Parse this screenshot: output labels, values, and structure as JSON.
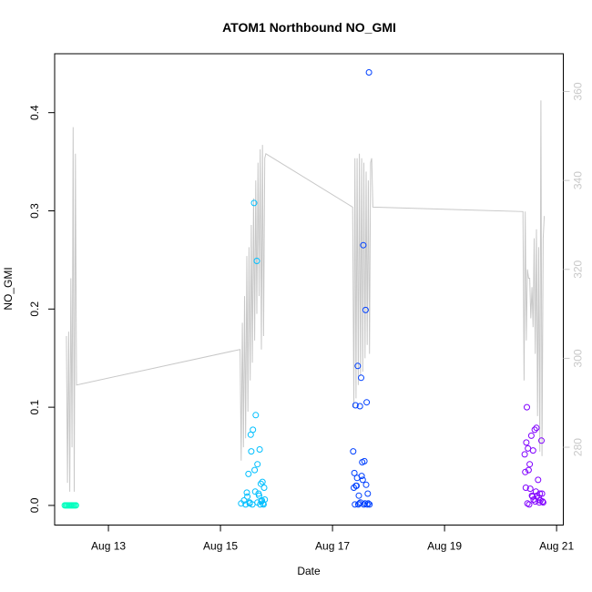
{
  "chart_data": {
    "type": "scatter",
    "title": "ATOM1 Northbound NO_GMI",
    "xlabel": "Date",
    "ylabel": "NO_GMI",
    "x_ticks": [
      "Aug 13",
      "Aug 15",
      "Aug 17",
      "Aug 19",
      "Aug 21"
    ],
    "y_ticks": [
      "0.0",
      "0.1",
      "0.2",
      "0.3",
      "0.4"
    ],
    "y2_ticks": [
      "280",
      "300",
      "320",
      "340",
      "360"
    ],
    "xlim_days": [
      12.04,
      21.12
    ],
    "ylim": [
      -0.02,
      0.46
    ],
    "y2lim": [
      262.5,
      368.5
    ],
    "grid": false,
    "legend": "none",
    "colors": {
      "flight_aug12": "#00ffbf",
      "flight_aug15": "#00bfff",
      "flight_aug17": "#0040ff",
      "flight_aug20": "#8000ff",
      "right_axis_line": "#c8c8c8"
    },
    "series": [
      {
        "color_key": "flight_aug12",
        "x": [
          12.22,
          12.24,
          12.26,
          12.28,
          12.3,
          12.32,
          12.34,
          12.36,
          12.38,
          12.4,
          12.42
        ],
        "y": [
          0,
          0,
          0,
          0,
          0,
          0,
          0,
          0,
          0,
          0,
          0
        ]
      },
      {
        "color_key": "flight_aug15",
        "x": [
          15.37,
          15.42,
          15.47,
          15.52,
          15.55,
          15.58,
          15.61,
          15.63,
          15.66,
          15.68,
          15.7,
          15.72,
          15.74,
          15.76,
          15.78,
          15.45,
          15.5,
          15.54,
          15.6,
          15.65,
          15.69,
          15.73,
          15.77,
          15.62,
          15.57,
          15.52,
          15.75,
          15.48,
          15.66,
          15.71,
          15.79
        ],
        "y": [
          0.002,
          0.005,
          0.013,
          0.003,
          0.055,
          0.077,
          0.036,
          0.092,
          0.042,
          0.012,
          0.057,
          0.022,
          0.005,
          0.002,
          0.018,
          0.001,
          0.032,
          0.072,
          0.308,
          0.249,
          0.01,
          0.004,
          0.001,
          0.014,
          0.001,
          0.002,
          0.024,
          0.009,
          0.003,
          0.001,
          0.006
        ]
      },
      {
        "color_key": "flight_aug17",
        "x": [
          17.37,
          17.39,
          17.41,
          17.43,
          17.45,
          17.47,
          17.49,
          17.51,
          17.53,
          17.55,
          17.57,
          17.59,
          17.61,
          17.63,
          17.65,
          17.4,
          17.44,
          17.48,
          17.52,
          17.56,
          17.6,
          17.64,
          17.38,
          17.46,
          17.54,
          17.62,
          17.42,
          17.5,
          17.58,
          17.66
        ],
        "y": [
          0.055,
          0.033,
          0.102,
          0.02,
          0.142,
          0.01,
          0.101,
          0.13,
          0.044,
          0.265,
          0.045,
          0.199,
          0.105,
          0.012,
          0.441,
          0.001,
          0.028,
          0.002,
          0.03,
          0.001,
          0.021,
          0.002,
          0.018,
          0.001,
          0.026,
          0.001,
          0.02,
          0.003,
          0.002,
          0.001
        ]
      },
      {
        "color_key": "flight_aug20",
        "x": [
          20.43,
          20.46,
          20.49,
          20.52,
          20.55,
          20.58,
          20.61,
          20.64,
          20.67,
          20.7,
          20.73,
          20.76,
          20.44,
          20.47,
          20.5,
          20.53,
          20.56,
          20.59,
          20.62,
          20.65,
          20.68,
          20.71,
          20.74,
          20.45,
          20.51,
          20.57,
          20.63,
          20.69,
          20.75,
          20.48
        ],
        "y": [
          0.052,
          0.064,
          0.058,
          0.042,
          0.071,
          0.056,
          0.077,
          0.079,
          0.026,
          0.012,
          0.066,
          0.003,
          0.034,
          0.1,
          0.036,
          0.017,
          0.01,
          0.006,
          0.004,
          0.01,
          0.008,
          0.005,
          0.012,
          0.018,
          0.001,
          0.009,
          0.014,
          0.003,
          0.004,
          0.002
        ]
      }
    ],
    "line_series": {
      "axis": "right",
      "x": [
        12.25,
        12.27,
        12.29,
        12.31,
        12.33,
        12.35,
        12.37,
        12.39,
        12.41,
        12.43,
        15.35,
        15.37,
        15.39,
        15.41,
        15.43,
        15.45,
        15.47,
        15.49,
        15.51,
        15.53,
        15.55,
        15.57,
        15.59,
        15.61,
        15.63,
        15.65,
        15.67,
        15.69,
        15.71,
        15.73,
        15.75,
        15.77,
        15.79,
        15.81,
        17.36,
        17.38,
        17.4,
        17.42,
        17.44,
        17.46,
        17.48,
        17.5,
        17.52,
        17.54,
        17.56,
        17.58,
        17.6,
        17.62,
        17.64,
        17.66,
        17.68,
        17.7,
        17.72,
        20.4,
        20.42,
        20.44,
        20.46,
        20.48,
        20.5,
        20.52,
        20.54,
        20.56,
        20.58,
        20.6,
        20.62,
        20.64,
        20.66,
        20.68,
        20.7,
        20.72,
        20.74,
        20.76,
        20.78
      ],
      "y": [
        305,
        272,
        306,
        270,
        318,
        280,
        352,
        270,
        346,
        294,
        302,
        277,
        308,
        280,
        314,
        282,
        323,
        288,
        325,
        295,
        330,
        299,
        336,
        304,
        340,
        310,
        344,
        314,
        347,
        302,
        348,
        305,
        345,
        346,
        334,
        289,
        345,
        291,
        345,
        294,
        346,
        296,
        345,
        297,
        344,
        300,
        342,
        303,
        340,
        301,
        344,
        345,
        334,
        333,
        295,
        333,
        304,
        320,
        318,
        318,
        309,
        316,
        307,
        327,
        301,
        329,
        287,
        325,
        279,
        358,
        278,
        327,
        332
      ]
    }
  }
}
